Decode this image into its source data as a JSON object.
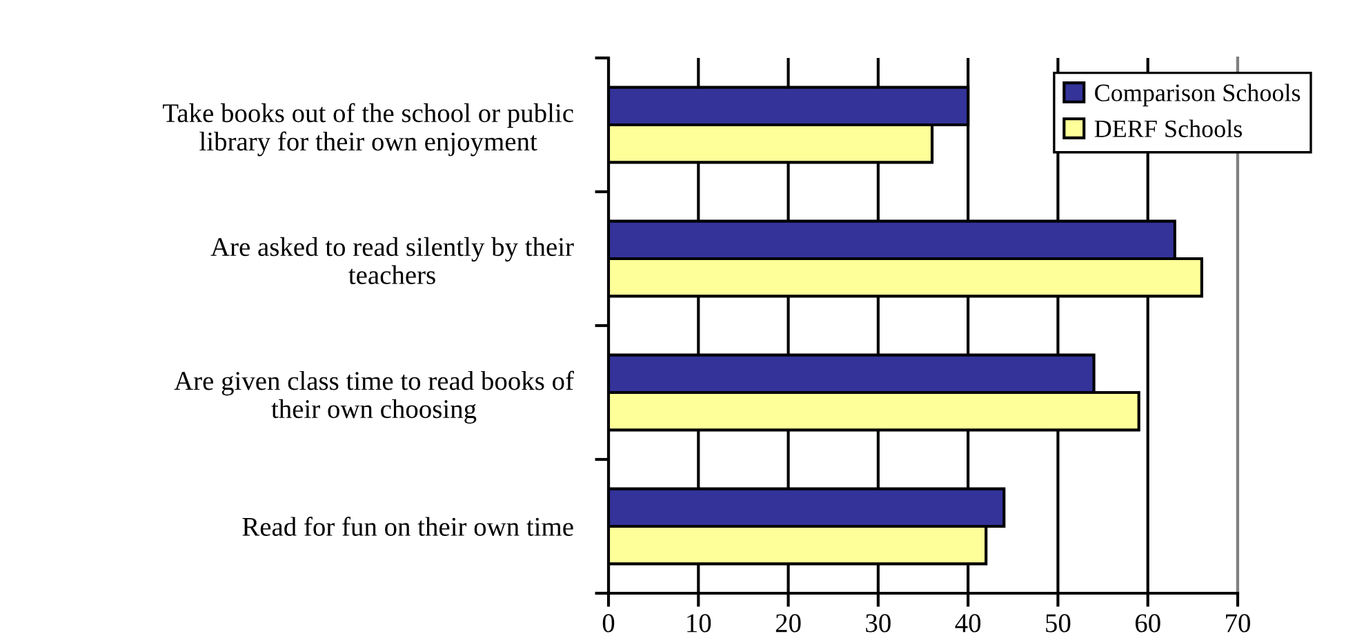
{
  "chart_data": {
    "type": "bar",
    "orientation": "horizontal",
    "categories": [
      "Take books out of the school or public\nlibrary for their own enjoyment",
      "Are asked to read silently by their\nteachers",
      "Are given class time to read books of\ntheir own choosing",
      "Read for fun on their own time"
    ],
    "series": [
      {
        "name": "Comparison Schools",
        "color": "#333399",
        "values": [
          40,
          63,
          54,
          44
        ]
      },
      {
        "name": "DERF Schools",
        "color": "#ffff99",
        "values": [
          36,
          66,
          59,
          42
        ]
      }
    ],
    "xlim": [
      0,
      70
    ],
    "xticks": [
      0,
      10,
      20,
      30,
      40,
      50,
      60,
      70
    ],
    "grid": "x",
    "legend": "top right"
  }
}
